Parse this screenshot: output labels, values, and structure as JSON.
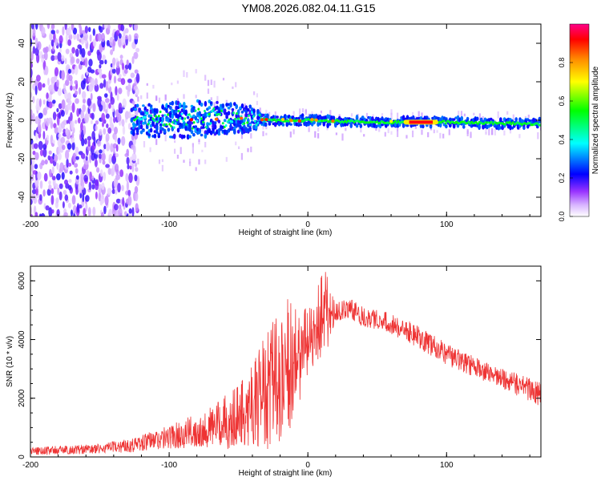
{
  "title": "YM08.2026.082.04.11.G15",
  "chart_data": [
    {
      "type": "heatmap",
      "name": "spectrogram",
      "xlabel": "Height of straight line (km)",
      "ylabel": "Frequency (Hz)",
      "xlim": [
        -200,
        168
      ],
      "ylim": [
        -50,
        50
      ],
      "xticks": [
        "-200",
        "-100",
        "0",
        "100"
      ],
      "yticks": [
        "-40",
        "-20",
        "0",
        "20",
        "40"
      ],
      "colorbar": {
        "label": "Normalized spectral amplitude",
        "range": [
          0.0,
          1.0
        ],
        "ticks": [
          "0.0",
          "0.2",
          "0.4",
          "0.6",
          "0.8"
        ],
        "colors": [
          "#ffffff",
          "#cc99ff",
          "#7700ee",
          "#0000ff",
          "#00ffff",
          "#00ff00",
          "#ffff00",
          "#ff8800",
          "#ff0000",
          "#ff0088"
        ]
      },
      "features": {
        "noise_region_x": [
          -200,
          -123
        ],
        "signal_line_freq_hz": [
          {
            "x": -125,
            "f": 0
          },
          {
            "x": -100,
            "f": 0
          },
          {
            "x": -75,
            "f": 1
          },
          {
            "x": -50,
            "f": 1
          },
          {
            "x": -30,
            "f": 0
          },
          {
            "x": 0,
            "f": 0
          },
          {
            "x": 50,
            "f": -1
          },
          {
            "x": 100,
            "f": -1
          },
          {
            "x": 168,
            "f": -2
          }
        ],
        "signal_spread_hz": [
          {
            "x": -125,
            "s": 10
          },
          {
            "x": -75,
            "s": 12
          },
          {
            "x": -40,
            "s": 8
          },
          {
            "x": -30,
            "s": 3
          },
          {
            "x": 168,
            "s": 3
          }
        ],
        "red_segment_x": [
          73,
          90
        ]
      }
    },
    {
      "type": "line",
      "name": "snr",
      "xlabel": "Height of straight line (km)",
      "ylabel": "SNR (10 * v/v)",
      "xlim": [
        -200,
        168
      ],
      "ylim": [
        0,
        6500
      ],
      "xticks": [
        "-200",
        "-100",
        "0",
        "100"
      ],
      "yticks": [
        "0",
        "2000",
        "4000",
        "6000"
      ],
      "color": "#ee3333",
      "envelope": [
        {
          "x": -200,
          "lo": 50,
          "hi": 350
        },
        {
          "x": -150,
          "lo": 100,
          "hi": 450
        },
        {
          "x": -125,
          "lo": 150,
          "hi": 700
        },
        {
          "x": -100,
          "lo": 250,
          "hi": 1100
        },
        {
          "x": -75,
          "lo": 300,
          "hi": 1600
        },
        {
          "x": -50,
          "lo": 250,
          "hi": 2400
        },
        {
          "x": -40,
          "lo": 200,
          "hi": 3100
        },
        {
          "x": -25,
          "lo": 300,
          "hi": 4800
        },
        {
          "x": -15,
          "lo": 600,
          "hi": 5400
        },
        {
          "x": -5,
          "lo": 2000,
          "hi": 4800
        },
        {
          "x": 5,
          "lo": 3000,
          "hi": 5600
        },
        {
          "x": 12,
          "lo": 3300,
          "hi": 6400
        },
        {
          "x": 20,
          "lo": 4600,
          "hi": 5300
        },
        {
          "x": 30,
          "lo": 4700,
          "hi": 5400
        },
        {
          "x": 40,
          "lo": 4400,
          "hi": 5200
        },
        {
          "x": 55,
          "lo": 4300,
          "hi": 5000
        },
        {
          "x": 75,
          "lo": 3800,
          "hi": 4600
        },
        {
          "x": 100,
          "lo": 3100,
          "hi": 3900
        },
        {
          "x": 130,
          "lo": 2500,
          "hi": 3200
        },
        {
          "x": 168,
          "lo": 1700,
          "hi": 2600
        }
      ]
    }
  ]
}
